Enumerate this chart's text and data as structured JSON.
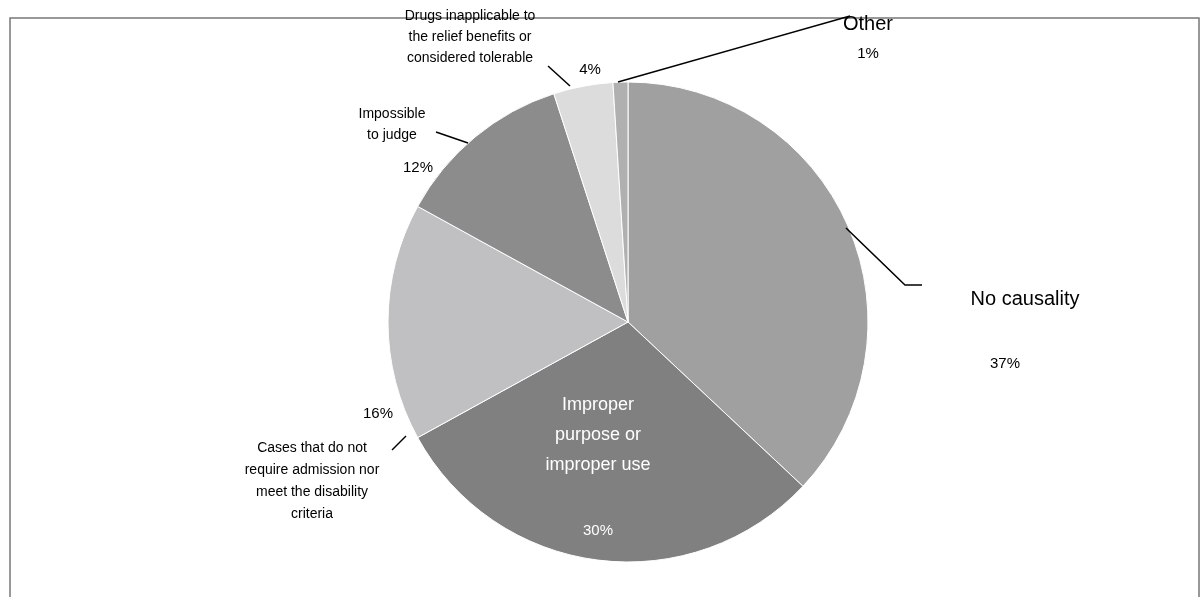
{
  "chart_data": {
    "type": "pie",
    "categories": [
      "No causality",
      "Improper purpose or improper use",
      "Cases that do not require admission nor meet the disability criteria",
      "Impossible to judge",
      "Drugs inapplicable to the relief benefits or considered tolerable",
      "Other"
    ],
    "values": [
      37,
      30,
      16,
      12,
      4,
      1
    ],
    "value_labels": [
      "37%",
      "30%",
      "16%",
      "12%",
      "4%",
      "1%"
    ],
    "colors": [
      "#a0a0a0",
      "#808080",
      "#c0c0c2",
      "#8c8c8c",
      "#dcdcdc",
      "#b0b0b0"
    ],
    "legend": false
  }
}
